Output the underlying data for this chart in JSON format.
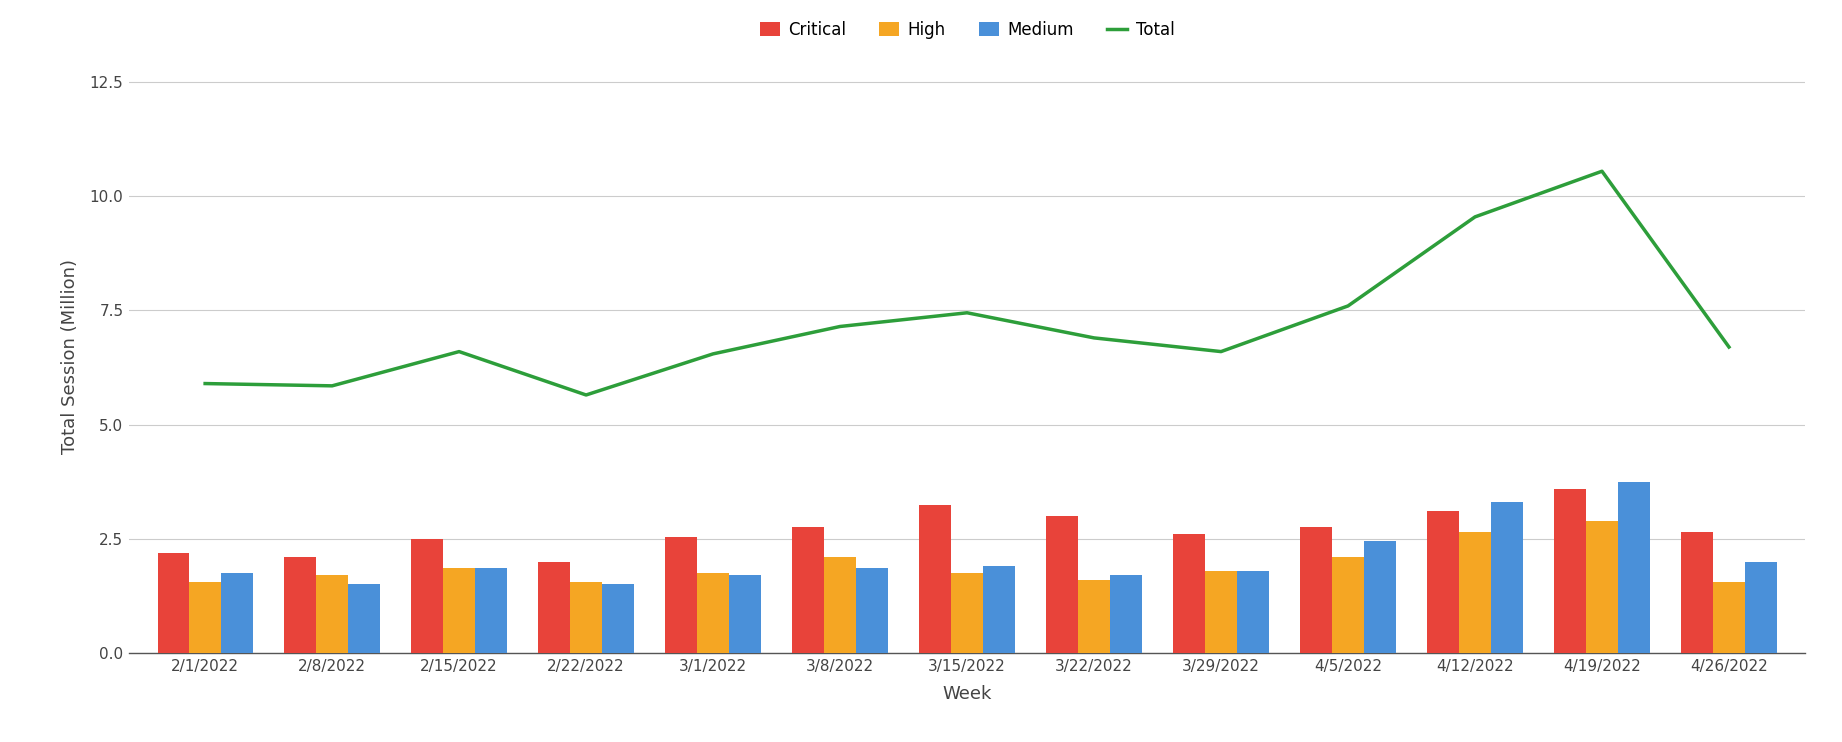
{
  "weeks": [
    "2/1/2022",
    "2/8/2022",
    "2/15/2022",
    "2/22/2022",
    "3/1/2022",
    "3/8/2022",
    "3/15/2022",
    "3/22/2022",
    "3/29/2022",
    "4/5/2022",
    "4/12/2022",
    "4/19/2022",
    "4/26/2022"
  ],
  "critical": [
    2.2,
    2.1,
    2.5,
    2.0,
    2.55,
    2.75,
    3.25,
    3.0,
    2.6,
    2.75,
    3.1,
    3.6,
    2.65
  ],
  "high": [
    1.55,
    1.7,
    1.85,
    1.55,
    1.75,
    2.1,
    1.75,
    1.6,
    1.8,
    2.1,
    2.65,
    2.9,
    1.55
  ],
  "medium": [
    1.75,
    1.5,
    1.85,
    1.5,
    1.7,
    1.85,
    1.9,
    1.7,
    1.8,
    2.45,
    3.3,
    3.75,
    2.0
  ],
  "total": [
    5.9,
    5.85,
    6.6,
    5.65,
    6.55,
    7.15,
    7.45,
    6.9,
    6.6,
    7.6,
    9.55,
    10.55,
    6.7
  ],
  "critical_color": "#e8433a",
  "high_color": "#f5a623",
  "medium_color": "#4a90d9",
  "total_color": "#2d9e3a",
  "ylabel": "Total Session (Million)",
  "xlabel": "Week",
  "ylim": [
    0,
    13.0
  ],
  "yticks": [
    0.0,
    2.5,
    5.0,
    7.5,
    10.0,
    12.5
  ],
  "ytick_labels": [
    "0.0",
    "2.5",
    "5.0",
    "7.5",
    "10.0",
    "12.5"
  ],
  "legend_labels": [
    "Critical",
    "High",
    "Medium",
    "Total"
  ],
  "bar_width": 0.25,
  "background_color": "#ffffff",
  "grid_color": "#cccccc",
  "axis_fontsize": 13,
  "tick_fontsize": 11,
  "legend_fontsize": 12
}
